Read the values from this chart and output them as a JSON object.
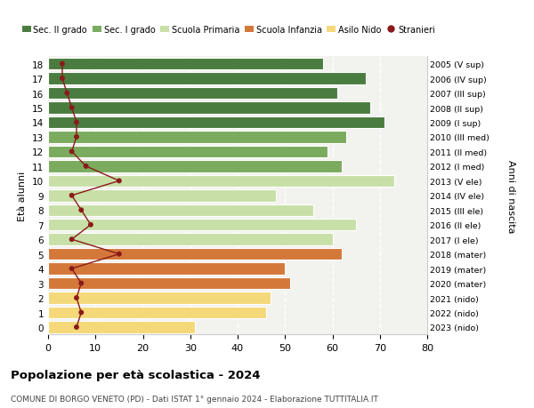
{
  "ages": [
    18,
    17,
    16,
    15,
    14,
    13,
    12,
    11,
    10,
    9,
    8,
    7,
    6,
    5,
    4,
    3,
    2,
    1,
    0
  ],
  "bar_values": [
    58,
    67,
    61,
    68,
    71,
    63,
    59,
    62,
    73,
    48,
    56,
    65,
    60,
    62,
    50,
    51,
    47,
    46,
    31
  ],
  "stranieri": [
    3,
    3,
    4,
    5,
    6,
    6,
    5,
    8,
    15,
    5,
    7,
    9,
    5,
    15,
    5,
    7,
    6,
    7,
    6
  ],
  "right_labels": [
    "2005 (V sup)",
    "2006 (IV sup)",
    "2007 (III sup)",
    "2008 (II sup)",
    "2009 (I sup)",
    "2010 (III med)",
    "2011 (II med)",
    "2012 (I med)",
    "2013 (V ele)",
    "2014 (IV ele)",
    "2015 (III ele)",
    "2016 (II ele)",
    "2017 (I ele)",
    "2018 (mater)",
    "2019 (mater)",
    "2020 (mater)",
    "2021 (nido)",
    "2022 (nido)",
    "2023 (nido)"
  ],
  "bar_colors": [
    "#4a7c3f",
    "#4a7c3f",
    "#4a7c3f",
    "#4a7c3f",
    "#4a7c3f",
    "#7aab5e",
    "#7aab5e",
    "#7aab5e",
    "#c8e0a8",
    "#c8e0a8",
    "#c8e0a8",
    "#c8e0a8",
    "#c8e0a8",
    "#d4783a",
    "#d4783a",
    "#d4783a",
    "#f5d87a",
    "#f5d87a",
    "#f5d87a"
  ],
  "legend_labels": [
    "Sec. II grado",
    "Sec. I grado",
    "Scuola Primaria",
    "Scuola Infanzia",
    "Asilo Nido",
    "Stranieri"
  ],
  "legend_colors": [
    "#4a7c3f",
    "#7aab5e",
    "#c8e0a8",
    "#d4783a",
    "#f5d87a",
    "#9b1c1c"
  ],
  "title1": "Popolazione per età scolastica - 2024",
  "title2": "COMUNE DI BORGO VENETO (PD) - Dati ISTAT 1° gennaio 2024 - Elaborazione TUTTITALIA.IT",
  "ylabel": "Età alunni",
  "ylabel2": "Anni di nascita",
  "xlim": [
    0,
    80
  ],
  "background_color": "#ffffff",
  "bar_background": "#f2f2ee",
  "stranieri_color": "#8b1a1a",
  "grid_color": "#ffffff"
}
